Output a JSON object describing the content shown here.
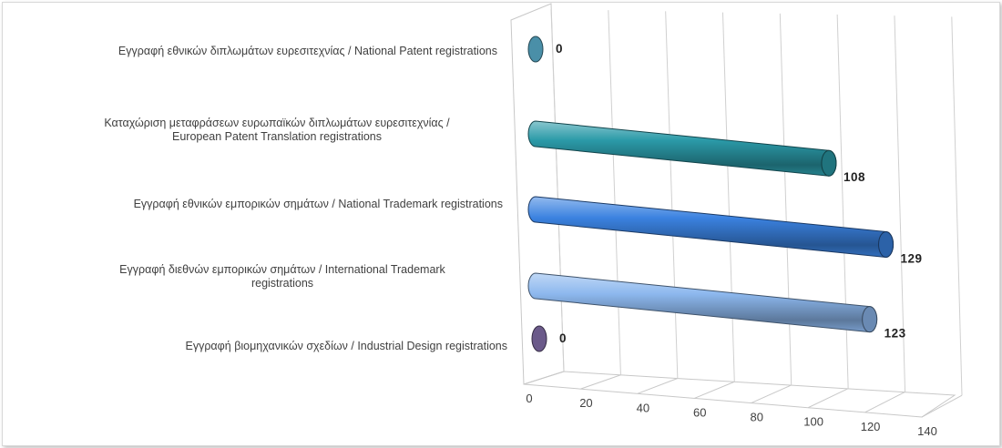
{
  "chart_data": {
    "type": "bar",
    "orientation": "horizontal",
    "style": "3d-cylinder",
    "categories": [
      [
        "Εγγραφή  εθνικών διπλωμάτων ευρεσιτεχνίας / National Patent registrations"
      ],
      [
        "Καταχώριση μεταφράσεων ευρωπαϊκών διπλωμάτων ευρεσιτεχνίας /",
        "European Patent Translation registrations"
      ],
      [
        "Εγγραφή  εθνικών εμπορικών σημάτων / National Trademark registrations"
      ],
      [
        "Εγγραφή  διεθνών εμπορικών σημάτων / International Trademark",
        "registrations"
      ],
      [
        "Εγγραφή  βιομηχανικών σχεδίων / Industrial Design registrations"
      ]
    ],
    "values": [
      0,
      108,
      129,
      123,
      0
    ],
    "value_labels": [
      "0",
      "108",
      "129",
      "123",
      "0"
    ],
    "colors": [
      "#4a8fa8",
      "#2b9aa8",
      "#3b82e0",
      "#8db8ee",
      "#6b5a8a"
    ],
    "xlim": [
      0,
      140
    ],
    "xticks": [
      "0",
      "20",
      "40",
      "60",
      "80",
      "100",
      "120",
      "140"
    ],
    "grid": true,
    "legend": "none"
  }
}
